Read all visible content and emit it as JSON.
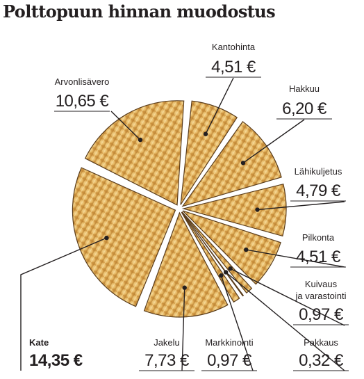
{
  "chart_data": {
    "type": "pie",
    "title": "Polttopuun hinnan muodostus",
    "currency": "€",
    "slices": [
      {
        "label": "Kantohinta",
        "value": 4.51,
        "display": "4,51 €"
      },
      {
        "label": "Hakkuu",
        "value": 6.2,
        "display": "6,20 €"
      },
      {
        "label": "Lähikuljetus",
        "value": 4.79,
        "display": "4,79 €"
      },
      {
        "label": "Pilkonta",
        "value": 4.51,
        "display": "4,51 €"
      },
      {
        "label": "Kuivaus ja varastointi",
        "value": 0.97,
        "display": "0,97 €"
      },
      {
        "label": "Pakkaus",
        "value": 0.32,
        "display": "0,32 €"
      },
      {
        "label": "Markkinointi",
        "value": 0.97,
        "display": "0,97 €"
      },
      {
        "label": "Jakelu",
        "value": 7.73,
        "display": "7,73 €"
      },
      {
        "label": "Kate",
        "value": 14.35,
        "display": "14,35 €"
      },
      {
        "label": "Arvonlisävero",
        "value": 10.65,
        "display": "10,65 €"
      }
    ],
    "colors": {
      "wood": "#e3b45e",
      "wood_light": "#f1cf86",
      "grain": "#a06f2c",
      "bark": "#3a2a18",
      "text": "#231f20"
    }
  }
}
